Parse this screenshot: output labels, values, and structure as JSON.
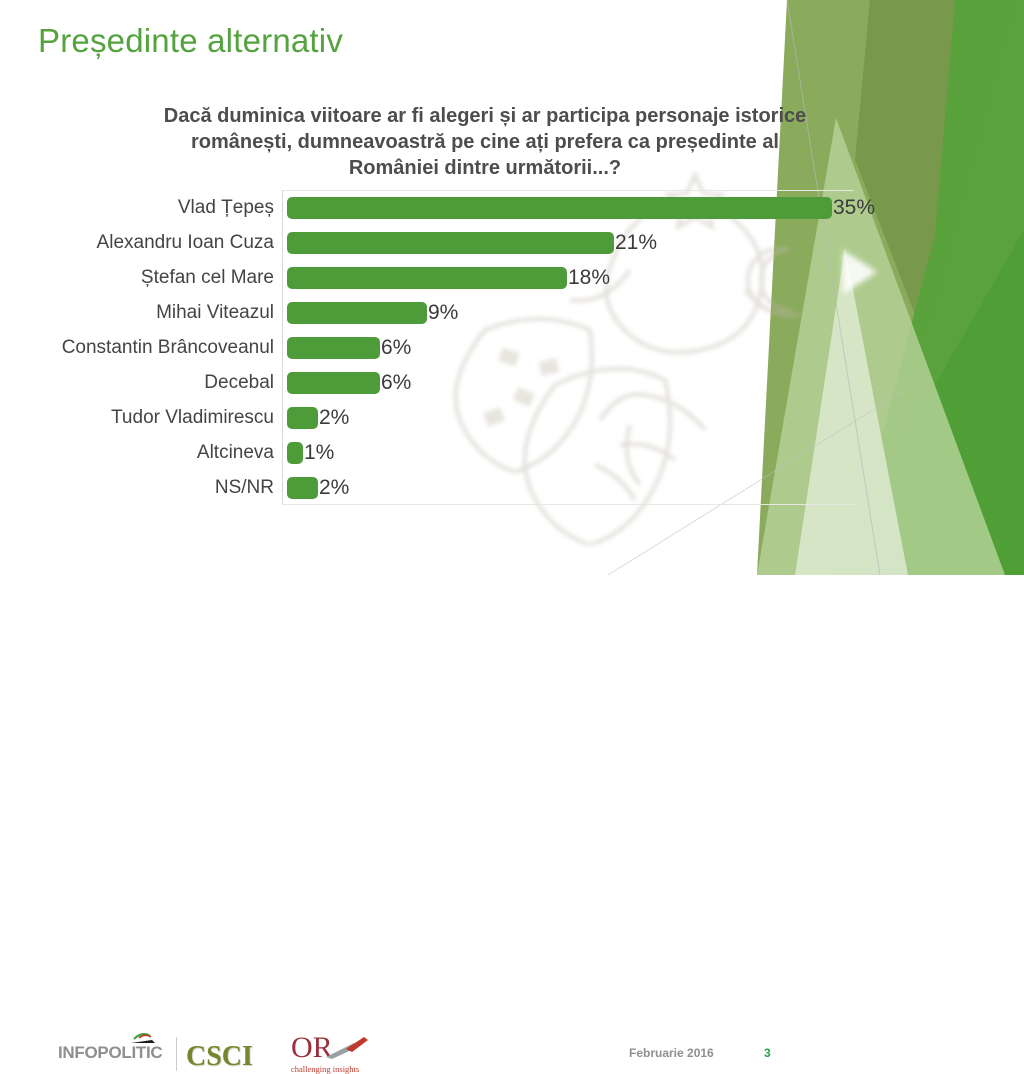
{
  "slide": {
    "title": "Președinte alternativ",
    "date": "Februarie 2016",
    "page_number": "3"
  },
  "question": {
    "lines": [
      "Dacă duminica viitoare ar fi alegeri și ar participa personaje istorice",
      "românești, dumneavoastră pe cine ați prefera ca președinte al",
      "României dintre următorii...?"
    ],
    "full_text": "Dacă duminica viitoare ar fi alegeri și ar participa personaje istorice românești, dumneavoastră pe cine ați prefera ca președinte al României dintre următorii...?"
  },
  "chart_data": {
    "type": "bar",
    "orientation": "horizontal",
    "title": "",
    "categories": [
      "Vlad Țepeș",
      "Alexandru Ioan Cuza",
      "Ștefan cel Mare",
      "Mihai Viteazul",
      "Constantin Brâncoveanul",
      "Decebal",
      "Tudor Vladimirescu",
      "Altcineva",
      "NS/NR"
    ],
    "values": [
      35,
      21,
      18,
      9,
      6,
      6,
      2,
      1,
      2
    ],
    "unit": "%",
    "xlim": [
      0,
      35.5
    ],
    "grid": false,
    "data_labels": true,
    "legend": "none",
    "bar_color": "#4e9c39"
  },
  "footer": {
    "logo_infopolitic": "INFOPOLITIC",
    "logo_csci": "CSCI",
    "logo_or": "OR",
    "logo_or_tagline": "challenging insights",
    "date_label": "Februarie 2016",
    "page_label": "3"
  },
  "colors": {
    "title_green": "#55a33e",
    "bar_green": "#4e9c39",
    "question_gray": "#4d4d4d",
    "axis_gray": "#d9d9d9",
    "footer_gray": "#8f8f8f",
    "page_green": "#2f9e44",
    "csci_olive": "#77862c",
    "or_red": "#9c2f39"
  }
}
